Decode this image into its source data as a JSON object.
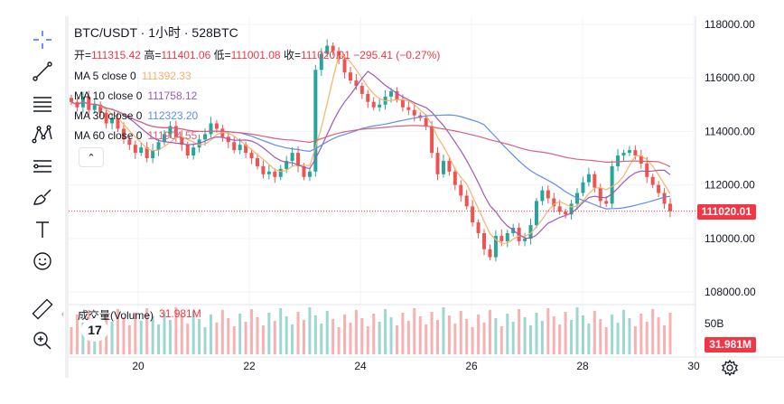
{
  "header": {
    "title": "BTC/USDT · 1小时 · 528BTC",
    "ohlc": {
      "open_label": "开=",
      "open": "111315.42",
      "high_label": "高=",
      "high": "111401.06",
      "low_label": "低=",
      "low": "111001.08",
      "close_label": "收=",
      "close": "111020.01",
      "change": "−295.41 (−0.27%)"
    }
  },
  "moving_averages": [
    {
      "label": "MA 5 close 0",
      "value": "111392.33",
      "color": "#f7b26a"
    },
    {
      "label": "MA 10 close 0",
      "value": "111758.12",
      "color": "#9b59b6"
    },
    {
      "label": "MA 30 close 0",
      "value": "112323.20",
      "color": "#5b8def"
    },
    {
      "label": "MA 60 close 0",
      "value": "111904.55",
      "color": "#d9607e"
    }
  ],
  "collapse_glyph": "⌃",
  "volume": {
    "label": "成交量(Volume)",
    "value": "31.981M",
    "axis_label": "50B",
    "tag": "31.981M"
  },
  "price_axis": [
    "118000.00",
    "116000.00",
    "114000.00",
    "112000.00",
    "110000.00",
    "108000.00"
  ],
  "last_price_tag": "111020.01",
  "time_axis": [
    "20",
    "22",
    "24",
    "26",
    "28",
    "30"
  ],
  "logo_text": "17",
  "colors": {
    "up": "#26a69a",
    "down": "#ef5350",
    "price_line": "#f23645"
  },
  "chart_data": {
    "type": "candlestick",
    "series_close": [
      115100,
      114900,
      115300,
      114800,
      115000,
      114700,
      114300,
      114500,
      114100,
      113700,
      113500,
      113200,
      113400,
      113000,
      113300,
      113600,
      113900,
      114200,
      113800,
      113500,
      113100,
      113400,
      113700,
      113900,
      114300,
      114100,
      113800,
      113600,
      113300,
      113500,
      113200,
      113000,
      112700,
      112400,
      112500,
      112300,
      112600,
      112900,
      113200,
      112700,
      112300,
      112500,
      116300,
      116900,
      117200,
      117000,
      116700,
      116200,
      115900,
      115700,
      115400,
      115100,
      114900,
      115000,
      115300,
      115500,
      115200,
      114900,
      114800,
      114600,
      114500,
      114200,
      113200,
      112400,
      112900,
      112500,
      112000,
      111600,
      111200,
      110600,
      110200,
      109600,
      109300,
      110100,
      109900,
      110200,
      110400,
      109900,
      110000,
      110500,
      111400,
      111800,
      111500,
      111200,
      111000,
      110900,
      111300,
      111700,
      112100,
      112400,
      111900,
      111400,
      111300,
      112700,
      113100,
      113200,
      113300,
      113100,
      112800,
      112300,
      112000,
      111700,
      111300,
      111020
    ],
    "y_range": [
      107600,
      118300
    ]
  }
}
